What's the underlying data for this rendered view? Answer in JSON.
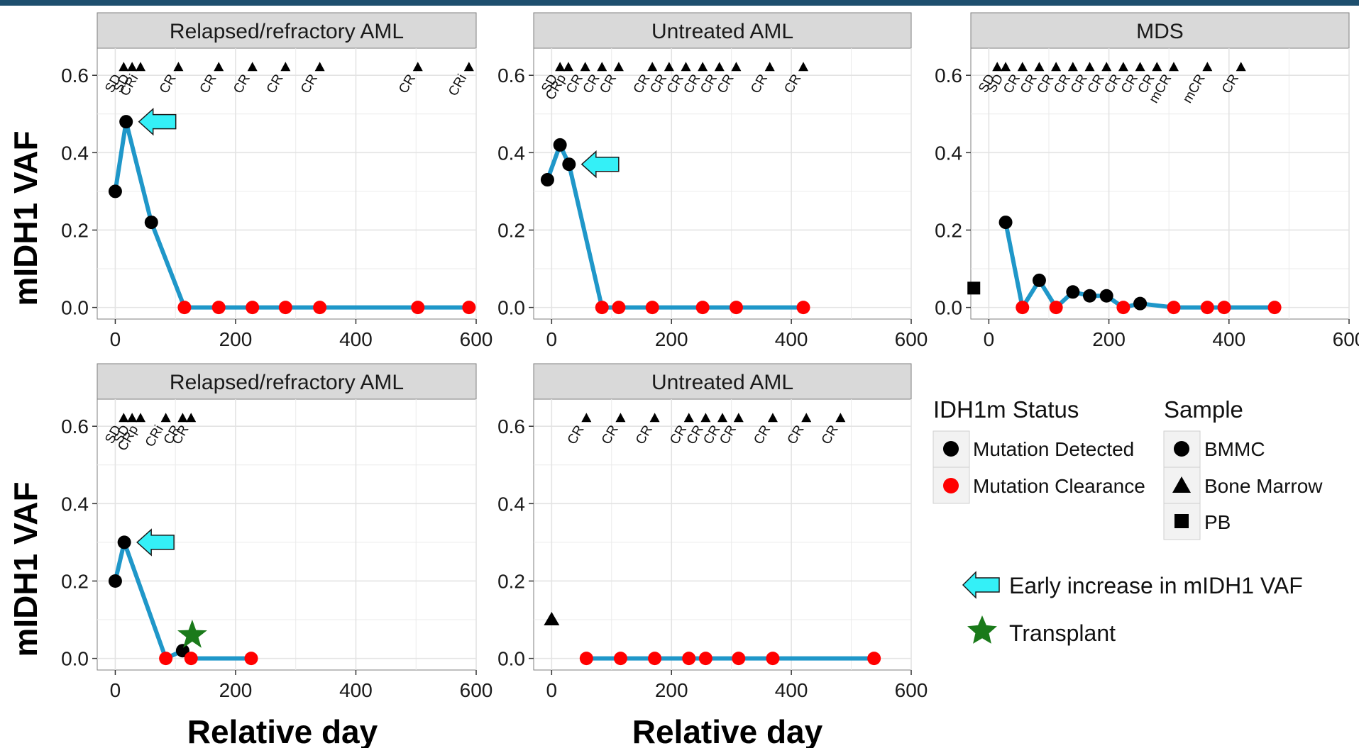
{
  "colors": {
    "line": "#1f97c9",
    "detected": "#000000",
    "clearance": "#ff0000",
    "strip_bg": "#d9d9d9",
    "grid": "#ebebeb",
    "arrow": "#34f0f7",
    "star": "#1a7a1a"
  },
  "axes": {
    "ylabel": "mIDH1 VAF",
    "xlabel": "Relative day",
    "x_ticks": [
      "0",
      "200",
      "400",
      "600"
    ],
    "y_ticks": [
      "0.0",
      "0.2",
      "0.4",
      "0.6"
    ]
  },
  "legend": {
    "status_title": "IDH1m Status",
    "status_items": [
      {
        "label": "Mutation Detected",
        "color": "#000000"
      },
      {
        "label": "Mutation Clearance",
        "color": "#ff0000"
      }
    ],
    "sample_title": "Sample",
    "sample_items": [
      {
        "label": "BMMC",
        "shape": "circle"
      },
      {
        "label": "Bone Marrow",
        "shape": "triangle"
      },
      {
        "label": "PB",
        "shape": "square"
      }
    ],
    "arrow_label": "Early increase in mIDH1 VAF",
    "star_label": "Transplant"
  },
  "chart_data": [
    {
      "type": "line",
      "title": "Relapsed/refractory AML",
      "xlim": [
        -30,
        600
      ],
      "ylim": [
        -0.03,
        0.67
      ],
      "line": [
        [
          0,
          0.3
        ],
        [
          18,
          0.48
        ],
        [
          60,
          0.22
        ],
        [
          115,
          0.0
        ],
        [
          172,
          0.0
        ],
        [
          228,
          0.0
        ],
        [
          283,
          0.0
        ],
        [
          340,
          0.0
        ],
        [
          503,
          0.0
        ],
        [
          588,
          0.0
        ]
      ],
      "points": [
        {
          "x": 0,
          "y": 0.3,
          "status": "detected",
          "shape": "circle"
        },
        {
          "x": 18,
          "y": 0.48,
          "status": "detected",
          "shape": "circle"
        },
        {
          "x": 60,
          "y": 0.22,
          "status": "detected",
          "shape": "circle"
        },
        {
          "x": 115,
          "y": 0.0,
          "status": "clearance",
          "shape": "circle"
        },
        {
          "x": 172,
          "y": 0.0,
          "status": "clearance",
          "shape": "circle"
        },
        {
          "x": 228,
          "y": 0.0,
          "status": "clearance",
          "shape": "circle"
        },
        {
          "x": 283,
          "y": 0.0,
          "status": "clearance",
          "shape": "circle"
        },
        {
          "x": 340,
          "y": 0.0,
          "status": "clearance",
          "shape": "circle"
        },
        {
          "x": 503,
          "y": 0.0,
          "status": "clearance",
          "shape": "circle"
        },
        {
          "x": 588,
          "y": 0.0,
          "status": "clearance",
          "shape": "circle"
        }
      ],
      "assessments": [
        {
          "x": 14,
          "label": "SD"
        },
        {
          "x": 28,
          "label": "SD"
        },
        {
          "x": 42,
          "label": "CRi"
        },
        {
          "x": 105,
          "label": "CR"
        },
        {
          "x": 172,
          "label": "CR"
        },
        {
          "x": 228,
          "label": "CR"
        },
        {
          "x": 283,
          "label": "CR"
        },
        {
          "x": 340,
          "label": "CR"
        },
        {
          "x": 503,
          "label": "CR"
        },
        {
          "x": 588,
          "label": "CRi"
        }
      ],
      "arrow": {
        "x": 18,
        "y": 0.48
      },
      "star": null
    },
    {
      "type": "line",
      "title": "Untreated AML",
      "xlim": [
        -30,
        600
      ],
      "ylim": [
        -0.03,
        0.67
      ],
      "line": [
        [
          -7,
          0.33
        ],
        [
          14,
          0.42
        ],
        [
          29,
          0.37
        ],
        [
          84,
          0.0
        ],
        [
          112,
          0.0
        ],
        [
          168,
          0.0
        ],
        [
          252,
          0.0
        ],
        [
          308,
          0.0
        ],
        [
          420,
          0.0
        ]
      ],
      "points": [
        {
          "x": -7,
          "y": 0.33,
          "status": "detected",
          "shape": "circle"
        },
        {
          "x": 14,
          "y": 0.42,
          "status": "detected",
          "shape": "circle"
        },
        {
          "x": 29,
          "y": 0.37,
          "status": "detected",
          "shape": "circle"
        },
        {
          "x": 84,
          "y": 0.0,
          "status": "clearance",
          "shape": "circle"
        },
        {
          "x": 112,
          "y": 0.0,
          "status": "clearance",
          "shape": "circle"
        },
        {
          "x": 168,
          "y": 0.0,
          "status": "clearance",
          "shape": "circle"
        },
        {
          "x": 252,
          "y": 0.0,
          "status": "clearance",
          "shape": "circle"
        },
        {
          "x": 308,
          "y": 0.0,
          "status": "clearance",
          "shape": "circle"
        },
        {
          "x": 420,
          "y": 0.0,
          "status": "clearance",
          "shape": "circle"
        }
      ],
      "assessments": [
        {
          "x": 14,
          "label": "SD"
        },
        {
          "x": 28,
          "label": "CRp"
        },
        {
          "x": 56,
          "label": "CR"
        },
        {
          "x": 84,
          "label": "CR"
        },
        {
          "x": 112,
          "label": "CR"
        },
        {
          "x": 168,
          "label": "CR"
        },
        {
          "x": 196,
          "label": "CR"
        },
        {
          "x": 224,
          "label": "CR"
        },
        {
          "x": 252,
          "label": "CR"
        },
        {
          "x": 280,
          "label": "CR"
        },
        {
          "x": 308,
          "label": "CR"
        },
        {
          "x": 364,
          "label": "CR"
        },
        {
          "x": 420,
          "label": "CR"
        }
      ],
      "arrow": {
        "x": 29,
        "y": 0.37
      },
      "star": null
    },
    {
      "type": "line",
      "title": "MDS",
      "xlim": [
        -30,
        600
      ],
      "ylim": [
        -0.03,
        0.67
      ],
      "line": [
        [
          28,
          0.22
        ],
        [
          56,
          0.0
        ],
        [
          84,
          0.07
        ],
        [
          112,
          0.0
        ],
        [
          140,
          0.04
        ],
        [
          168,
          0.03
        ],
        [
          196,
          0.03
        ],
        [
          224,
          0.0
        ],
        [
          252,
          0.01
        ],
        [
          308,
          0.0
        ],
        [
          364,
          0.0
        ],
        [
          392,
          0.0
        ],
        [
          476,
          0.0
        ]
      ],
      "points": [
        {
          "x": -25,
          "y": 0.05,
          "status": "detected",
          "shape": "square"
        },
        {
          "x": 28,
          "y": 0.22,
          "status": "detected",
          "shape": "circle"
        },
        {
          "x": 56,
          "y": 0.0,
          "status": "clearance",
          "shape": "circle"
        },
        {
          "x": 84,
          "y": 0.07,
          "status": "detected",
          "shape": "circle"
        },
        {
          "x": 112,
          "y": 0.0,
          "status": "clearance",
          "shape": "circle"
        },
        {
          "x": 140,
          "y": 0.04,
          "status": "detected",
          "shape": "circle"
        },
        {
          "x": 168,
          "y": 0.03,
          "status": "detected",
          "shape": "circle"
        },
        {
          "x": 196,
          "y": 0.03,
          "status": "detected",
          "shape": "circle"
        },
        {
          "x": 224,
          "y": 0.0,
          "status": "clearance",
          "shape": "circle"
        },
        {
          "x": 252,
          "y": 0.01,
          "status": "detected",
          "shape": "circle"
        },
        {
          "x": 308,
          "y": 0.0,
          "status": "clearance",
          "shape": "circle"
        },
        {
          "x": 364,
          "y": 0.0,
          "status": "clearance",
          "shape": "circle"
        },
        {
          "x": 392,
          "y": 0.0,
          "status": "clearance",
          "shape": "circle"
        },
        {
          "x": 476,
          "y": 0.0,
          "status": "clearance",
          "shape": "circle"
        }
      ],
      "assessments": [
        {
          "x": 14,
          "label": "SD"
        },
        {
          "x": 28,
          "label": "SD"
        },
        {
          "x": 56,
          "label": "CR"
        },
        {
          "x": 84,
          "label": "CR"
        },
        {
          "x": 112,
          "label": "CR"
        },
        {
          "x": 140,
          "label": "CR"
        },
        {
          "x": 168,
          "label": "CR"
        },
        {
          "x": 196,
          "label": "CR"
        },
        {
          "x": 224,
          "label": "CR"
        },
        {
          "x": 252,
          "label": "CR"
        },
        {
          "x": 280,
          "label": "CR"
        },
        {
          "x": 308,
          "label": "mCR"
        },
        {
          "x": 364,
          "label": "mCR"
        },
        {
          "x": 420,
          "label": "CR"
        }
      ],
      "arrow": null,
      "star": null
    },
    {
      "type": "line",
      "title": "Relapsed/refractory AML",
      "xlim": [
        -30,
        600
      ],
      "ylim": [
        -0.03,
        0.67
      ],
      "line": [
        [
          0,
          0.2
        ],
        [
          15,
          0.3
        ],
        [
          84,
          0.0
        ],
        [
          112,
          0.02
        ],
        [
          126,
          0.0
        ],
        [
          226,
          0.0
        ]
      ],
      "points": [
        {
          "x": 0,
          "y": 0.2,
          "status": "detected",
          "shape": "circle"
        },
        {
          "x": 15,
          "y": 0.3,
          "status": "detected",
          "shape": "circle"
        },
        {
          "x": 84,
          "y": 0.0,
          "status": "clearance",
          "shape": "circle"
        },
        {
          "x": 112,
          "y": 0.02,
          "status": "detected",
          "shape": "circle"
        },
        {
          "x": 126,
          "y": 0.0,
          "status": "clearance",
          "shape": "circle"
        },
        {
          "x": 226,
          "y": 0.0,
          "status": "clearance",
          "shape": "circle"
        }
      ],
      "assessments": [
        {
          "x": 14,
          "label": "SD"
        },
        {
          "x": 28,
          "label": "SD"
        },
        {
          "x": 42,
          "label": "CRp"
        },
        {
          "x": 84,
          "label": "CRi"
        },
        {
          "x": 112,
          "label": "CR"
        },
        {
          "x": 126,
          "label": "CR"
        }
      ],
      "arrow": {
        "x": 15,
        "y": 0.3
      },
      "star": {
        "x": 128,
        "y": 0.06
      }
    },
    {
      "type": "line",
      "title": "Untreated AML",
      "xlim": [
        -30,
        600
      ],
      "ylim": [
        -0.03,
        0.67
      ],
      "line": [
        [
          58,
          0.0
        ],
        [
          115,
          0.0
        ],
        [
          172,
          0.0
        ],
        [
          229,
          0.0
        ],
        [
          257,
          0.0
        ],
        [
          312,
          0.0
        ],
        [
          369,
          0.0
        ],
        [
          538,
          0.0
        ]
      ],
      "points": [
        {
          "x": 0,
          "y": 0.1,
          "status": "detected",
          "shape": "triangle"
        },
        {
          "x": 58,
          "y": 0.0,
          "status": "clearance",
          "shape": "circle"
        },
        {
          "x": 115,
          "y": 0.0,
          "status": "clearance",
          "shape": "circle"
        },
        {
          "x": 172,
          "y": 0.0,
          "status": "clearance",
          "shape": "circle"
        },
        {
          "x": 229,
          "y": 0.0,
          "status": "clearance",
          "shape": "circle"
        },
        {
          "x": 257,
          "y": 0.0,
          "status": "clearance",
          "shape": "circle"
        },
        {
          "x": 312,
          "y": 0.0,
          "status": "clearance",
          "shape": "circle"
        },
        {
          "x": 369,
          "y": 0.0,
          "status": "clearance",
          "shape": "circle"
        },
        {
          "x": 538,
          "y": 0.0,
          "status": "clearance",
          "shape": "circle"
        }
      ],
      "assessments": [
        {
          "x": 58,
          "label": "CR"
        },
        {
          "x": 115,
          "label": "CR"
        },
        {
          "x": 172,
          "label": "CR"
        },
        {
          "x": 229,
          "label": "CR"
        },
        {
          "x": 257,
          "label": "CR"
        },
        {
          "x": 285,
          "label": "CR"
        },
        {
          "x": 312,
          "label": "CR"
        },
        {
          "x": 369,
          "label": "CR"
        },
        {
          "x": 425,
          "label": "CR"
        },
        {
          "x": 482,
          "label": "CR"
        }
      ],
      "arrow": null,
      "star": null
    }
  ]
}
